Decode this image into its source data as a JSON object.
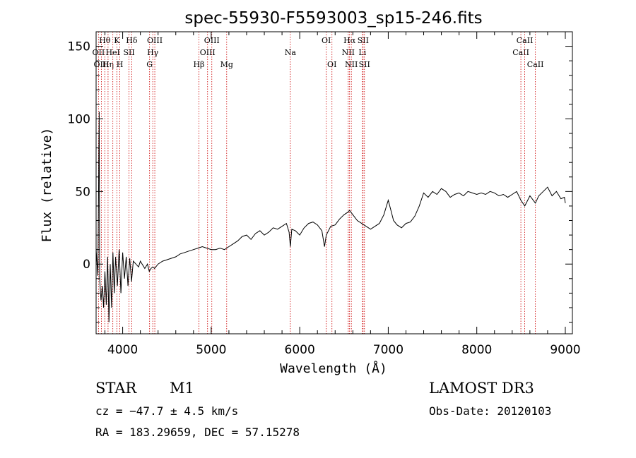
{
  "chart_data": {
    "type": "line",
    "title": "spec-55930-F5593003_sp15-246.fits",
    "xlabel": "Wavelength (Å)",
    "ylabel": "Flux (relative)",
    "xlim": [
      3700,
      9080
    ],
    "ylim": [
      -48,
      160
    ],
    "xticks": [
      4000,
      5000,
      6000,
      7000,
      8000,
      9000
    ],
    "yticks": [
      0,
      50,
      100,
      150
    ],
    "line_color": "#000000",
    "marker_color": "#cc0000",
    "lines": [
      {
        "label": "OII",
        "wl": 3727,
        "row": 1
      },
      {
        "label": "OIII",
        "wl": 3760,
        "row": 2
      },
      {
        "label": "Hθ",
        "wl": 3798,
        "row": 0
      },
      {
        "label": "Hη",
        "wl": 3835,
        "row": 2
      },
      {
        "label": "HeI",
        "wl": 3889,
        "row": 1
      },
      {
        "label": "K",
        "wl": 3934,
        "row": 0
      },
      {
        "label": "H",
        "wl": 3968,
        "row": 2
      },
      {
        "label": "SII",
        "wl": 4072,
        "row": 1
      },
      {
        "label": "Hδ",
        "wl": 4102,
        "row": 0
      },
      {
        "label": "G",
        "wl": 4304,
        "row": 2
      },
      {
        "label": "Hγ",
        "wl": 4340,
        "row": 1
      },
      {
        "label": "OIII",
        "wl": 4363,
        "row": 0
      },
      {
        "label": "Hβ",
        "wl": 4861,
        "row": 2
      },
      {
        "label": "OIII",
        "wl": 4959,
        "row": 1
      },
      {
        "label": "OIII",
        "wl": 5007,
        "row": 0
      },
      {
        "label": "Mg",
        "wl": 5175,
        "row": 2
      },
      {
        "label": "Na",
        "wl": 5894,
        "row": 1
      },
      {
        "label": "OI",
        "wl": 6300,
        "row": 0
      },
      {
        "label": "OI",
        "wl": 6364,
        "row": 2
      },
      {
        "label": "NII",
        "wl": 6548,
        "row": 1
      },
      {
        "label": "Hα",
        "wl": 6563,
        "row": 0
      },
      {
        "label": "NII",
        "wl": 6583,
        "row": 2
      },
      {
        "label": "Li",
        "wl": 6708,
        "row": 1
      },
      {
        "label": "SII",
        "wl": 6716,
        "row": 0
      },
      {
        "label": "SII",
        "wl": 6731,
        "row": 2
      },
      {
        "label": "CaII",
        "wl": 8498,
        "row": 1
      },
      {
        "label": "CaII",
        "wl": 8542,
        "row": 0
      },
      {
        "label": "CaII",
        "wl": 8662,
        "row": 2
      }
    ],
    "spectrum": [
      [
        3700,
        10
      ],
      [
        3720,
        -8
      ],
      [
        3735,
        105
      ],
      [
        3740,
        -10
      ],
      [
        3755,
        -25
      ],
      [
        3770,
        -15
      ],
      [
        3785,
        -30
      ],
      [
        3800,
        -5
      ],
      [
        3815,
        -28
      ],
      [
        3830,
        5
      ],
      [
        3845,
        -40
      ],
      [
        3860,
        0
      ],
      [
        3875,
        -30
      ],
      [
        3890,
        8
      ],
      [
        3905,
        -20
      ],
      [
        3920,
        5
      ],
      [
        3940,
        -15
      ],
      [
        3960,
        10
      ],
      [
        3980,
        -20
      ],
      [
        4000,
        8
      ],
      [
        4020,
        -10
      ],
      [
        4040,
        5
      ],
      [
        4060,
        -15
      ],
      [
        4080,
        4
      ],
      [
        4100,
        -12
      ],
      [
        4120,
        2
      ],
      [
        4150,
        0
      ],
      [
        4180,
        -2
      ],
      [
        4200,
        2
      ],
      [
        4250,
        -3
      ],
      [
        4280,
        0
      ],
      [
        4300,
        -5
      ],
      [
        4320,
        -3
      ],
      [
        4340,
        -2
      ],
      [
        4360,
        -3
      ],
      [
        4400,
        0
      ],
      [
        4450,
        2
      ],
      [
        4500,
        3
      ],
      [
        4550,
        4
      ],
      [
        4600,
        5
      ],
      [
        4650,
        7
      ],
      [
        4700,
        8
      ],
      [
        4750,
        9
      ],
      [
        4800,
        10
      ],
      [
        4850,
        11
      ],
      [
        4900,
        12
      ],
      [
        4950,
        11
      ],
      [
        5000,
        10
      ],
      [
        5050,
        10
      ],
      [
        5100,
        11
      ],
      [
        5150,
        10
      ],
      [
        5200,
        12
      ],
      [
        5250,
        14
      ],
      [
        5300,
        16
      ],
      [
        5350,
        19
      ],
      [
        5400,
        20
      ],
      [
        5450,
        17
      ],
      [
        5500,
        21
      ],
      [
        5550,
        23
      ],
      [
        5600,
        20
      ],
      [
        5650,
        22
      ],
      [
        5700,
        25
      ],
      [
        5750,
        24
      ],
      [
        5800,
        26
      ],
      [
        5850,
        28
      ],
      [
        5880,
        22
      ],
      [
        5894,
        12
      ],
      [
        5910,
        24
      ],
      [
        5950,
        23
      ],
      [
        6000,
        20
      ],
      [
        6050,
        25
      ],
      [
        6100,
        28
      ],
      [
        6150,
        29
      ],
      [
        6200,
        27
      ],
      [
        6250,
        23
      ],
      [
        6280,
        12
      ],
      [
        6300,
        20
      ],
      [
        6350,
        26
      ],
      [
        6400,
        27
      ],
      [
        6450,
        31
      ],
      [
        6500,
        34
      ],
      [
        6550,
        36
      ],
      [
        6563,
        37
      ],
      [
        6600,
        34
      ],
      [
        6650,
        30
      ],
      [
        6700,
        28
      ],
      [
        6750,
        26
      ],
      [
        6800,
        24
      ],
      [
        6850,
        26
      ],
      [
        6900,
        28
      ],
      [
        6950,
        34
      ],
      [
        6980,
        40
      ],
      [
        7000,
        44
      ],
      [
        7030,
        37
      ],
      [
        7060,
        30
      ],
      [
        7100,
        27
      ],
      [
        7150,
        25
      ],
      [
        7200,
        28
      ],
      [
        7250,
        29
      ],
      [
        7300,
        33
      ],
      [
        7350,
        40
      ],
      [
        7400,
        49
      ],
      [
        7450,
        46
      ],
      [
        7500,
        50
      ],
      [
        7550,
        48
      ],
      [
        7600,
        52
      ],
      [
        7650,
        50
      ],
      [
        7700,
        46
      ],
      [
        7750,
        48
      ],
      [
        7800,
        49
      ],
      [
        7850,
        47
      ],
      [
        7900,
        50
      ],
      [
        7950,
        49
      ],
      [
        8000,
        48
      ],
      [
        8050,
        49
      ],
      [
        8100,
        48
      ],
      [
        8150,
        50
      ],
      [
        8200,
        49
      ],
      [
        8250,
        47
      ],
      [
        8300,
        48
      ],
      [
        8350,
        46
      ],
      [
        8400,
        48
      ],
      [
        8450,
        50
      ],
      [
        8498,
        44
      ],
      [
        8542,
        40
      ],
      [
        8600,
        47
      ],
      [
        8662,
        42
      ],
      [
        8700,
        47
      ],
      [
        8750,
        50
      ],
      [
        8800,
        53
      ],
      [
        8850,
        47
      ],
      [
        8900,
        50
      ],
      [
        8950,
        45
      ],
      [
        8990,
        46
      ],
      [
        9000,
        42
      ]
    ]
  },
  "info": {
    "object_class": "STAR",
    "subclass": "M1",
    "survey": "LAMOST DR3",
    "cz": "cz = −47.7 ± 4.5 km/s",
    "obs_date": "Obs-Date: 20120103",
    "coords": "RA = 183.29659, DEC =  57.15278"
  }
}
